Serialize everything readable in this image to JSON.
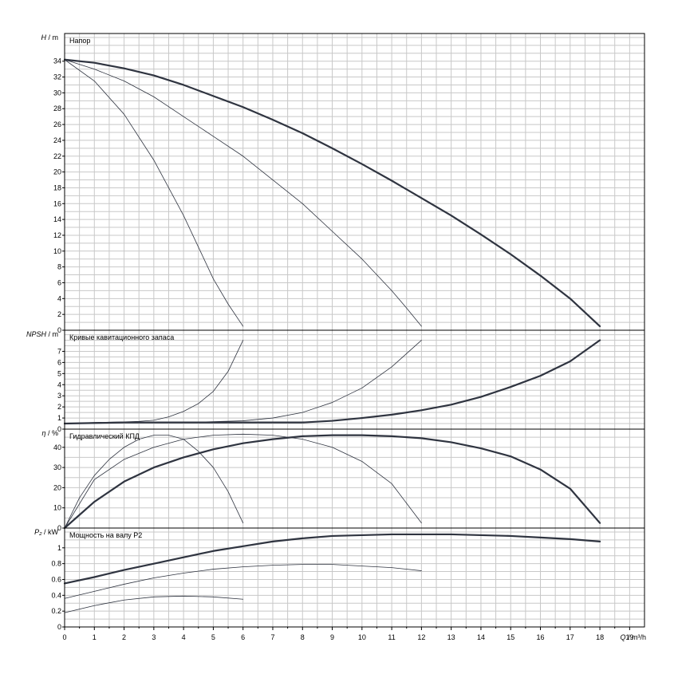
{
  "chart_data": {
    "type": "line",
    "x_axis": {
      "label_symbol": "Q",
      "label_unit": "m³/h",
      "ticks": [
        "0",
        "1",
        "2",
        "3",
        "4",
        "5",
        "6",
        "7",
        "8",
        "9",
        "10",
        "11",
        "12",
        "13",
        "14",
        "15",
        "16",
        "17",
        "18",
        "19"
      ],
      "range": [
        0,
        19.5
      ]
    },
    "panels": [
      {
        "id": "head",
        "title": "Напор",
        "y_symbol": "H",
        "y_unit": "m",
        "range": [
          0,
          37.5
        ],
        "grid_step": 1,
        "ticks": [
          "0",
          "2",
          "4",
          "6",
          "8",
          "10",
          "12",
          "14",
          "16",
          "18",
          "20",
          "22",
          "24",
          "26",
          "28",
          "30",
          "32",
          "34"
        ],
        "tick_values": [
          0,
          2,
          4,
          6,
          8,
          10,
          12,
          14,
          16,
          18,
          20,
          22,
          24,
          26,
          28,
          30,
          32,
          34
        ],
        "series": [
          {
            "width": 0.8,
            "x": [
              0,
              1,
              2,
              3,
              4,
              5,
              5.5,
              6
            ],
            "y": [
              34.2,
              31.5,
              27.3,
              21.5,
              14.5,
              6.5,
              3.3,
              0.5
            ]
          },
          {
            "width": 0.8,
            "x": [
              0,
              1,
              2,
              3,
              4,
              5,
              6,
              7,
              8,
              9,
              10,
              11,
              11.5,
              12
            ],
            "y": [
              34.2,
              33,
              31.5,
              29.5,
              27,
              24.5,
              22,
              19,
              16,
              12.5,
              9,
              5,
              2.8,
              0.5
            ]
          },
          {
            "width": 2.2,
            "x": [
              0,
              1,
              2,
              3,
              4,
              5,
              6,
              7,
              8,
              9,
              10,
              11,
              12,
              13,
              14,
              15,
              16,
              17,
              18
            ],
            "y": [
              34.2,
              33.8,
              33.1,
              32.2,
              31,
              29.6,
              28.2,
              26.6,
              24.9,
              23,
              21,
              18.9,
              16.7,
              14.5,
              12.1,
              9.6,
              6.9,
              4,
              0.5
            ]
          }
        ]
      },
      {
        "id": "npsh",
        "title": "Кривые кавитационного запаса",
        "y_symbol": "NPSH",
        "y_unit": "m",
        "range": [
          0,
          8.9
        ],
        "grid_step": 0.5,
        "ticks": [
          "0",
          "1",
          "2",
          "3",
          "4",
          "5",
          "6",
          "7"
        ],
        "tick_values": [
          0,
          1,
          2,
          3,
          4,
          5,
          6,
          7
        ],
        "series": [
          {
            "width": 0.8,
            "x": [
              0,
              1,
              2,
              2.5,
              3,
              3.5,
              4,
              4.5,
              5,
              5.5,
              6
            ],
            "y": [
              0.5,
              0.6,
              0.65,
              0.7,
              0.8,
              1.1,
              1.6,
              2.3,
              3.4,
              5.2,
              8
            ]
          },
          {
            "width": 0.8,
            "x": [
              0,
              2,
              4,
              6,
              7,
              8,
              9,
              10,
              11,
              12
            ],
            "y": [
              0.5,
              0.6,
              0.6,
              0.75,
              1,
              1.5,
              2.4,
              3.7,
              5.6,
              8
            ]
          },
          {
            "width": 2.2,
            "x": [
              0,
              2,
              4,
              6,
              8,
              9,
              10,
              11,
              12,
              13,
              14,
              15,
              16,
              17,
              18
            ],
            "y": [
              0.5,
              0.6,
              0.6,
              0.6,
              0.6,
              0.75,
              1,
              1.3,
              1.7,
              2.2,
              2.9,
              3.8,
              4.8,
              6.1,
              8
            ]
          }
        ]
      },
      {
        "id": "efficiency",
        "title": "Гидравлический КПД",
        "y_symbol": "η",
        "y_unit": "%",
        "range": [
          0,
          49
        ],
        "grid_step": 5,
        "ticks": [
          "0",
          "10",
          "20",
          "30",
          "40"
        ],
        "tick_values": [
          0,
          10,
          20,
          30,
          40
        ],
        "series": [
          {
            "width": 0.8,
            "x": [
              0,
              0.5,
              1,
              1.5,
              2,
              2.5,
              3,
              3.5,
              4,
              4.5,
              5,
              5.5,
              6
            ],
            "y": [
              0,
              15,
              26,
              34,
              40,
              44,
              46,
              46,
              44,
              38,
              30,
              18,
              2.5
            ]
          },
          {
            "width": 0.8,
            "x": [
              0,
              1,
              2,
              3,
              4,
              5,
              6,
              7,
              8,
              9,
              10,
              11,
              12
            ],
            "y": [
              0,
              24,
              34,
              40,
              44,
              46,
              46.5,
              46,
              44,
              40,
              33,
              22,
              2.5
            ]
          },
          {
            "width": 2.2,
            "x": [
              0,
              1,
              2,
              3,
              4,
              5,
              6,
              7,
              8,
              9,
              10,
              11,
              12,
              13,
              14,
              15,
              16,
              17,
              18
            ],
            "y": [
              0,
              13,
              23,
              30,
              35,
              39,
              42,
              44,
              45.5,
              46,
              46,
              45.5,
              44.5,
              42.5,
              39.5,
              35.5,
              29,
              19.5,
              2.5
            ]
          }
        ]
      },
      {
        "id": "power",
        "title": "Мощность на валу P2",
        "y_symbol": "P₂",
        "y_unit": "kW",
        "range": [
          0,
          1.25
        ],
        "grid_step": 0.1,
        "ticks": [
          "0",
          "0.2",
          "0.4",
          "0.6",
          "0.8",
          "1"
        ],
        "tick_values": [
          0,
          0.2,
          0.4,
          0.6,
          0.8,
          1.0
        ],
        "series": [
          {
            "width": 0.8,
            "x": [
              0,
              1,
              2,
              3,
              4,
              5,
              6
            ],
            "y": [
              0.18,
              0.27,
              0.34,
              0.38,
              0.39,
              0.38,
              0.35
            ]
          },
          {
            "width": 0.8,
            "x": [
              0,
              1,
              2,
              3,
              4,
              5,
              6,
              7,
              8,
              9,
              10,
              11,
              12
            ],
            "y": [
              0.36,
              0.45,
              0.54,
              0.62,
              0.68,
              0.73,
              0.76,
              0.78,
              0.79,
              0.79,
              0.77,
              0.75,
              0.71
            ]
          },
          {
            "width": 2.2,
            "x": [
              0,
              1,
              2,
              3,
              4,
              5,
              6,
              7,
              8,
              9,
              10,
              11,
              12,
              13,
              14,
              15,
              16,
              17,
              18
            ],
            "y": [
              0.55,
              0.63,
              0.72,
              0.8,
              0.88,
              0.96,
              1.02,
              1.08,
              1.12,
              1.15,
              1.16,
              1.17,
              1.17,
              1.17,
              1.16,
              1.15,
              1.13,
              1.11,
              1.08
            ]
          }
        ]
      }
    ]
  }
}
